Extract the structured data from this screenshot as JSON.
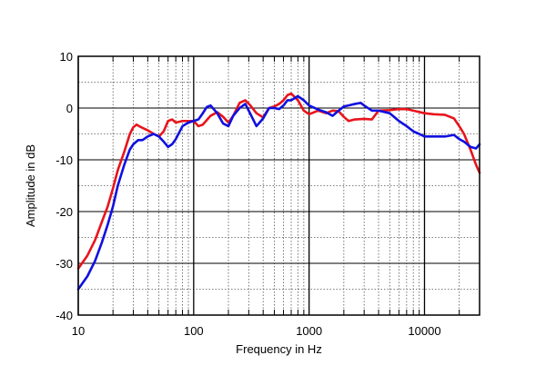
{
  "chart_data": {
    "type": "line",
    "title": "",
    "xlabel": "Frequency in Hz",
    "ylabel": "Amplitude in dB",
    "x_scale": "log",
    "xlim": [
      10,
      30000
    ],
    "ylim": [
      -40,
      10
    ],
    "x_ticks": [
      10,
      100,
      1000,
      10000
    ],
    "x_tick_labels": [
      "10",
      "100",
      "1000",
      "10000"
    ],
    "y_ticks": [
      10,
      0,
      -10,
      -20,
      -30,
      -40
    ],
    "y_tick_labels": [
      "10",
      "0",
      "-10",
      "-20",
      "-30",
      "-40"
    ],
    "grid": true,
    "legend": "none",
    "series": [
      {
        "color": "#e8141c",
        "points": [
          [
            10,
            -31
          ],
          [
            12,
            -28.5
          ],
          [
            14,
            -25.5
          ],
          [
            16,
            -22
          ],
          [
            18,
            -19
          ],
          [
            20,
            -15.5
          ],
          [
            22,
            -12
          ],
          [
            25,
            -8.5
          ],
          [
            28,
            -5
          ],
          [
            30,
            -3.7
          ],
          [
            32,
            -3.2
          ],
          [
            35,
            -3.7
          ],
          [
            40,
            -4.3
          ],
          [
            45,
            -5
          ],
          [
            50,
            -5.5
          ],
          [
            55,
            -4.5
          ],
          [
            60,
            -2.5
          ],
          [
            65,
            -2.2
          ],
          [
            70,
            -2.8
          ],
          [
            80,
            -2.5
          ],
          [
            90,
            -2.5
          ],
          [
            100,
            -2.5
          ],
          [
            110,
            -3.5
          ],
          [
            120,
            -3.2
          ],
          [
            140,
            -1.5
          ],
          [
            160,
            -0.8
          ],
          [
            180,
            -1.7
          ],
          [
            200,
            -2.8
          ],
          [
            220,
            -1.5
          ],
          [
            250,
            1
          ],
          [
            280,
            1.5
          ],
          [
            310,
            0.5
          ],
          [
            350,
            -1
          ],
          [
            400,
            -1.8
          ],
          [
            450,
            0
          ],
          [
            500,
            0.3
          ],
          [
            550,
            0.8
          ],
          [
            600,
            1.5
          ],
          [
            650,
            2.5
          ],
          [
            700,
            2.8
          ],
          [
            800,
            1.5
          ],
          [
            900,
            -0.5
          ],
          [
            1000,
            -1.2
          ],
          [
            1200,
            -0.5
          ],
          [
            1400,
            -1
          ],
          [
            1600,
            -0.5
          ],
          [
            1800,
            -0.6
          ],
          [
            2000,
            -1.7
          ],
          [
            2200,
            -2.5
          ],
          [
            2500,
            -2.2
          ],
          [
            3000,
            -2.1
          ],
          [
            3500,
            -2.2
          ],
          [
            4000,
            -0.5
          ],
          [
            5000,
            -0.4
          ],
          [
            6000,
            -0.2
          ],
          [
            7000,
            -0.2
          ],
          [
            8000,
            -0.5
          ],
          [
            10000,
            -1
          ],
          [
            12000,
            -1.2
          ],
          [
            15000,
            -1.3
          ],
          [
            18000,
            -2
          ],
          [
            20000,
            -3.5
          ],
          [
            22000,
            -5
          ],
          [
            25000,
            -8
          ],
          [
            28000,
            -11
          ],
          [
            30000,
            -12.5
          ]
        ]
      },
      {
        "color": "#1010e0",
        "points": [
          [
            10,
            -35
          ],
          [
            12,
            -32.5
          ],
          [
            14,
            -29.5
          ],
          [
            16,
            -26
          ],
          [
            18,
            -22.5
          ],
          [
            20,
            -19
          ],
          [
            22,
            -15
          ],
          [
            25,
            -11
          ],
          [
            28,
            -8
          ],
          [
            30,
            -7
          ],
          [
            33,
            -6.2
          ],
          [
            36,
            -6.2
          ],
          [
            40,
            -5.5
          ],
          [
            45,
            -5
          ],
          [
            50,
            -5.5
          ],
          [
            55,
            -6.5
          ],
          [
            60,
            -7.5
          ],
          [
            65,
            -7
          ],
          [
            70,
            -6
          ],
          [
            80,
            -3.5
          ],
          [
            90,
            -2.8
          ],
          [
            100,
            -2.5
          ],
          [
            110,
            -2.2
          ],
          [
            120,
            -1
          ],
          [
            130,
            0.2
          ],
          [
            140,
            0.5
          ],
          [
            160,
            -1
          ],
          [
            180,
            -3
          ],
          [
            200,
            -3.5
          ],
          [
            220,
            -1.5
          ],
          [
            250,
            0
          ],
          [
            280,
            0.8
          ],
          [
            300,
            -0.5
          ],
          [
            350,
            -3.5
          ],
          [
            400,
            -2
          ],
          [
            450,
            0
          ],
          [
            500,
            0
          ],
          [
            550,
            -0.2
          ],
          [
            600,
            0.5
          ],
          [
            650,
            1.5
          ],
          [
            700,
            1.5
          ],
          [
            800,
            2.3
          ],
          [
            900,
            1.5
          ],
          [
            1000,
            0.5
          ],
          [
            1200,
            -0.3
          ],
          [
            1400,
            -0.8
          ],
          [
            1600,
            -1.5
          ],
          [
            1800,
            -0.5
          ],
          [
            2000,
            0.3
          ],
          [
            2200,
            0.5
          ],
          [
            2500,
            0.8
          ],
          [
            2800,
            1
          ],
          [
            3000,
            0.5
          ],
          [
            3500,
            -0.5
          ],
          [
            4000,
            -0.5
          ],
          [
            5000,
            -1
          ],
          [
            6000,
            -2.5
          ],
          [
            7000,
            -3.5
          ],
          [
            8000,
            -4.5
          ],
          [
            9000,
            -5
          ],
          [
            10000,
            -5.5
          ],
          [
            12000,
            -5.5
          ],
          [
            15000,
            -5.5
          ],
          [
            18000,
            -5.2
          ],
          [
            20000,
            -6
          ],
          [
            22000,
            -6.5
          ],
          [
            25000,
            -7.5
          ],
          [
            28000,
            -7.8
          ],
          [
            30000,
            -7
          ]
        ]
      }
    ]
  }
}
